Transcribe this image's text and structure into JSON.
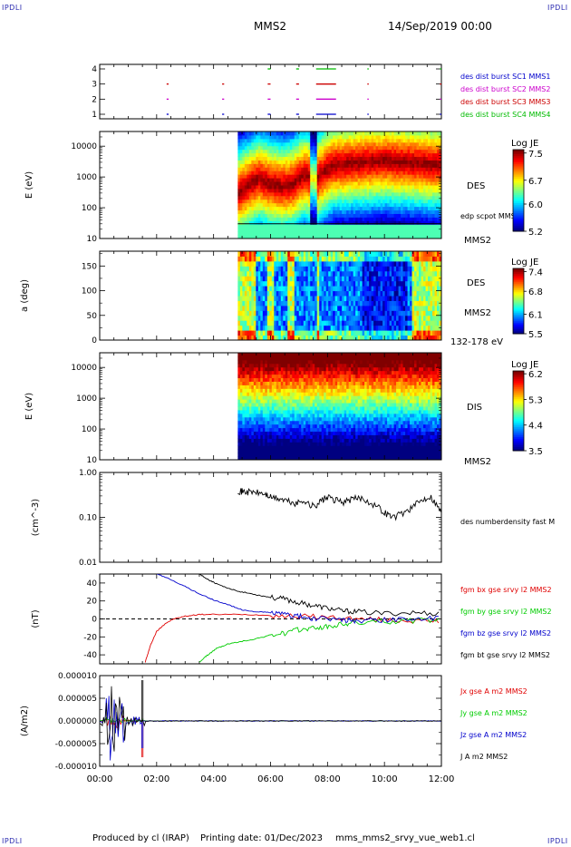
{
  "header": {
    "corner_label": "IPDLI",
    "spacecraft": "MMS2",
    "date_time": "14/Sep/2019 00:00"
  },
  "footer": {
    "producer": "Produced by cl (IRAP)",
    "printing_date": "Printing date: 01/Dec/2023",
    "file": "mms_mms2_srvy_vue_web1.cl"
  },
  "colors": {
    "bx": "#e00000",
    "by": "#00cc00",
    "bz": "#0000cc",
    "bt": "#000000",
    "mms1": "#0000cc",
    "mms2": "#cc00cc",
    "mms3": "#cc0000",
    "mms4": "#00bb00"
  },
  "chart_data": [
    {
      "type": "scatter",
      "id": "burst",
      "x_unit": "hours",
      "xlim": [
        0,
        12
      ],
      "ylim": [
        0.7,
        4.3
      ],
      "ticks": [
        1,
        2,
        3,
        4
      ],
      "tick_labels": [
        "1",
        "2",
        "3",
        "4"
      ],
      "ylabel": "",
      "legend": [
        "des dist burst SC1 MMS1",
        "des dist burst SC2 MMS2",
        "des dist burst SC3 MMS3",
        "des dist burst SC4 MMS4"
      ],
      "series": [
        {
          "name": "des dist burst SC1 MMS1",
          "level": 1,
          "color": "#0000cc",
          "intervals": [
            [
              2.35,
              2.42
            ],
            [
              4.3,
              4.37
            ],
            [
              5.9,
              6.0
            ],
            [
              6.9,
              7.0
            ],
            [
              7.6,
              8.3
            ],
            [
              9.4,
              9.43
            ],
            [
              11.95,
              12.0
            ]
          ]
        },
        {
          "name": "des dist burst SC2 MMS2",
          "level": 2,
          "color": "#cc00cc",
          "intervals": [
            [
              2.35,
              2.42
            ],
            [
              4.3,
              4.37
            ],
            [
              5.9,
              6.0
            ],
            [
              6.9,
              7.0
            ],
            [
              7.6,
              8.3
            ],
            [
              9.4,
              9.43
            ],
            [
              11.95,
              12.0
            ]
          ]
        },
        {
          "name": "des dist burst SC3 MMS3",
          "level": 3,
          "color": "#cc0000",
          "intervals": [
            [
              2.35,
              2.42
            ],
            [
              4.3,
              4.37
            ],
            [
              5.9,
              6.0
            ],
            [
              6.9,
              7.0
            ],
            [
              7.6,
              8.3
            ],
            [
              9.4,
              9.43
            ],
            [
              11.95,
              12.0
            ]
          ]
        },
        {
          "name": "des dist burst SC4 MMS4",
          "level": 4,
          "color": "#00bb00",
          "intervals": [
            [
              5.9,
              6.0
            ],
            [
              6.9,
              7.0
            ],
            [
              7.6,
              8.3
            ],
            [
              9.4,
              9.43
            ],
            [
              11.95,
              12.0
            ]
          ]
        }
      ]
    },
    {
      "type": "heatmap",
      "id": "des_energy",
      "ylabel": "E (eV)",
      "yscale": "log",
      "ylim": [
        10,
        30000
      ],
      "yticks": [
        10,
        100,
        1000,
        10000
      ],
      "ytick_labels": [
        "10",
        "100",
        "1000",
        "10000"
      ],
      "data_start_hour": 4.85,
      "label": "DES",
      "sublabel": "MMS2",
      "overlay_label": "edp scpot MMS2",
      "overlay_energy_eV": 30,
      "peak_energy_eV_by_hour": [
        [
          4.85,
          300
        ],
        [
          5.2,
          500
        ],
        [
          5.6,
          900
        ],
        [
          6.0,
          600
        ],
        [
          6.4,
          500
        ],
        [
          6.8,
          600
        ],
        [
          7.2,
          1200
        ],
        [
          7.6,
          800
        ],
        [
          8.2,
          2500
        ],
        [
          9.0,
          3000
        ],
        [
          10.0,
          3500
        ],
        [
          11.0,
          3000
        ],
        [
          12.0,
          2500
        ]
      ],
      "colorbar": {
        "title": "Log JE",
        "min": 5.2,
        "max": 7.6,
        "ticks": [
          5.2,
          6.0,
          6.7,
          7.5
        ]
      }
    },
    {
      "type": "heatmap",
      "id": "des_pitch",
      "ylabel": "a (deg)",
      "ylim": [
        0,
        180
      ],
      "yticks": [
        0,
        50,
        100,
        150
      ],
      "ytick_labels": [
        "0",
        "50",
        "100",
        "150"
      ],
      "data_start_hour": 4.85,
      "label": "DES",
      "sublabel": "MMS2",
      "energy_range": "132-178 eV",
      "colorbar": {
        "title": "Log JE",
        "min": 5.5,
        "max": 7.5,
        "ticks": [
          5.5,
          6.1,
          6.8,
          7.4
        ]
      }
    },
    {
      "type": "heatmap",
      "id": "dis_energy",
      "ylabel": "E (eV)",
      "yscale": "log",
      "ylim": [
        10,
        30000
      ],
      "yticks": [
        10,
        100,
        1000,
        10000
      ],
      "ytick_labels": [
        "10",
        "100",
        "1000",
        "10000"
      ],
      "data_start_hour": 4.85,
      "label": "DIS",
      "sublabel": "MMS2",
      "colorbar": {
        "title": "Log JE",
        "min": 3.5,
        "max": 6.3,
        "ticks": [
          3.5,
          4.4,
          5.3,
          6.2
        ]
      }
    },
    {
      "type": "line",
      "id": "density",
      "ylabel": "(cm^-3)",
      "yscale": "log",
      "ylim": [
        0.01,
        1.0
      ],
      "yticks": [
        0.01,
        0.1,
        1.0
      ],
      "ytick_labels": [
        "0.01",
        "0.10",
        "1.00"
      ],
      "series": [
        {
          "name": "des numberdensity fast M",
          "color": "#000000",
          "x": [
            4.85,
            5.0,
            5.2,
            5.5,
            5.8,
            6.0,
            6.3,
            6.6,
            6.9,
            7.2,
            7.4,
            7.6,
            7.8,
            8.0,
            8.3,
            8.6,
            8.9,
            9.2,
            9.6,
            10.0,
            10.3,
            10.7,
            11.0,
            11.3,
            11.6,
            11.9,
            12.0
          ],
          "y": [
            0.4,
            0.38,
            0.37,
            0.36,
            0.33,
            0.28,
            0.26,
            0.23,
            0.2,
            0.24,
            0.18,
            0.19,
            0.24,
            0.28,
            0.24,
            0.22,
            0.26,
            0.27,
            0.2,
            0.13,
            0.1,
            0.13,
            0.17,
            0.24,
            0.3,
            0.16,
            0.13
          ]
        }
      ]
    },
    {
      "type": "line",
      "id": "field",
      "ylabel": "(nT)",
      "ylim": [
        -50,
        50
      ],
      "yticks": [
        -40,
        -20,
        0,
        20,
        40
      ],
      "ytick_labels": [
        "-40",
        "-20",
        "0",
        "20",
        "40"
      ],
      "series": [
        {
          "name": "fgm bx gse srvy l2 MMS2",
          "color": "#e00000",
          "x": [
            1.6,
            1.8,
            2.0,
            2.3,
            2.6,
            3.0,
            3.5,
            4.0,
            5.0,
            6.0,
            7.0,
            8.0,
            9.0,
            10.0,
            11.0,
            12.0
          ],
          "y": [
            -48,
            -28,
            -14,
            -5,
            0,
            3,
            5,
            5,
            5,
            4,
            3,
            2,
            0,
            -1,
            -2,
            -3
          ]
        },
        {
          "name": "fgm by gse srvy l2 MMS2",
          "color": "#00cc00",
          "x": [
            3.5,
            3.8,
            4.1,
            4.5,
            5.0,
            5.5,
            6.0,
            6.5,
            7.0,
            7.5,
            8.0,
            8.5,
            9.0,
            10.0,
            11.0,
            12.0
          ],
          "y": [
            -48,
            -40,
            -33,
            -28,
            -25,
            -22,
            -18,
            -16,
            -12,
            -10,
            -9,
            -6,
            -4,
            -3,
            -2,
            -1
          ]
        },
        {
          "name": "fgm bz gse srvy l2 MMS2",
          "color": "#0000cc",
          "x": [
            2.0,
            2.5,
            3.0,
            3.5,
            4.0,
            4.5,
            5.0,
            5.5,
            6.0,
            6.5,
            7.0,
            7.5,
            8.0,
            8.5,
            9.0,
            10.0,
            11.0,
            12.0
          ],
          "y": [
            50,
            44,
            36,
            28,
            21,
            16,
            10,
            8,
            7,
            5,
            3,
            0,
            0,
            -1,
            -2,
            -1,
            0,
            0
          ]
        },
        {
          "name": "fgm bt gse srvy l2 MMS2",
          "color": "#000000",
          "x": [
            3.5,
            3.8,
            4.1,
            4.5,
            5.0,
            5.5,
            6.0,
            6.5,
            7.0,
            7.5,
            8.0,
            8.5,
            9.0,
            10.0,
            11.0,
            12.0
          ],
          "y": [
            50,
            44,
            39,
            34,
            30,
            27,
            24,
            22,
            18,
            15,
            12,
            9,
            8,
            6,
            7,
            6
          ]
        }
      ],
      "zero_line": true
    },
    {
      "type": "line",
      "id": "current",
      "ylabel": "(A/m2)",
      "ylim": [
        -1e-05,
        1e-05
      ],
      "yticks": [
        -1e-05,
        -5e-06,
        0,
        5e-06,
        1e-05
      ],
      "ytick_labels": [
        "-0.000010",
        "-0.000005",
        "0.000000",
        "0.000005",
        "0.000010"
      ],
      "series": [
        {
          "name": "Jx gse A m2 MMS2",
          "color": "#e00000",
          "burst_hours": [
            0.2,
            0.9
          ],
          "peak": 2e-06,
          "spike_hour": 1.5,
          "spike": -8e-06
        },
        {
          "name": "Jy gse A m2 MMS2",
          "color": "#00cc00",
          "burst_hours": [
            0.2,
            0.9
          ],
          "peak": 1e-06,
          "spike_hour": 1.5,
          "spike": 5e-07
        },
        {
          "name": "Jz gse A m2 MMS2",
          "color": "#0000cc",
          "burst_hours": [
            0.2,
            0.9
          ],
          "peak": 9e-06,
          "spike_hour": 1.5,
          "spike": -6e-06
        },
        {
          "name": "J A m2 MMS2",
          "color": "#000000",
          "burst_hours": [
            0.2,
            0.9
          ],
          "peak": 9e-06,
          "spike_hour": 1.5,
          "spike": 9e-06
        }
      ]
    }
  ],
  "time_axis": {
    "ticks": [
      0,
      2,
      4,
      6,
      8,
      10,
      12
    ],
    "labels": [
      "00:00",
      "02:00",
      "04:00",
      "06:00",
      "08:00",
      "10:00",
      "12:00"
    ]
  }
}
